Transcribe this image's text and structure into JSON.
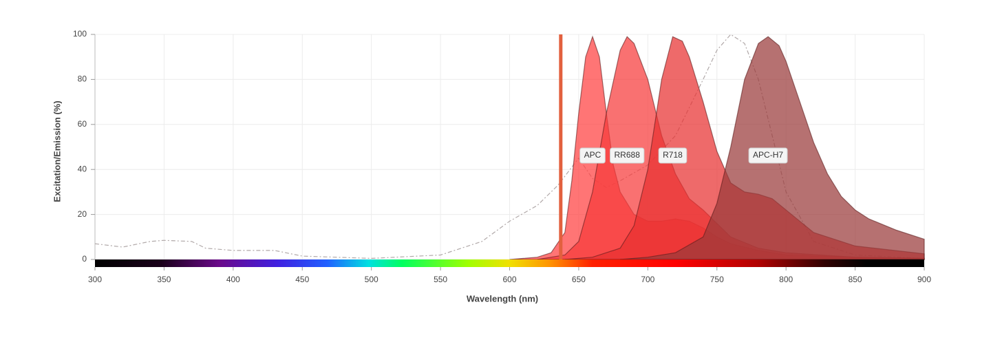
{
  "chart_data": {
    "type": "area",
    "xlabel": "Wavelength (nm)",
    "ylabel": "Excitation/Emission (%)",
    "xlim": [
      300,
      900
    ],
    "xticks": [
      300,
      350,
      400,
      450,
      500,
      550,
      600,
      650,
      700,
      750,
      800,
      850,
      900
    ],
    "ylim": [
      0,
      100
    ],
    "yticks": [
      0,
      20,
      40,
      60,
      80,
      100
    ],
    "grid": true,
    "lasers": [
      {
        "wavelength": 637,
        "color": "#e2603e"
      }
    ],
    "series": [
      {
        "color": "#b0a8a8",
        "dashed": true,
        "filled": false,
        "x": [
          300,
          320,
          340,
          350,
          370,
          380,
          400,
          430,
          450,
          500,
          550,
          580,
          600,
          620,
          635,
          650,
          660,
          670,
          680,
          700,
          720,
          740,
          750,
          760,
          770,
          780,
          790,
          800,
          820,
          850,
          900
        ],
        "values": [
          7,
          5.5,
          8,
          8.5,
          8,
          5,
          4,
          4,
          1.5,
          0.5,
          2,
          8,
          17,
          24,
          33,
          45,
          36,
          32,
          35,
          42,
          55,
          80,
          93,
          100,
          96,
          80,
          55,
          30,
          8,
          2,
          0.5
        ]
      },
      {
        "name": "APC",
        "color": "#ff4040",
        "filled": true,
        "x": [
          600,
          610,
          620,
          630,
          640,
          645,
          650,
          655,
          660,
          665,
          670,
          675,
          680,
          690,
          700,
          710,
          720,
          730,
          740,
          750,
          760,
          780,
          800,
          850,
          900
        ],
        "values": [
          0,
          0.5,
          1,
          3,
          12,
          35,
          65,
          90,
          99,
          90,
          65,
          42,
          30,
          20,
          17,
          17,
          18,
          17,
          14,
          10,
          7,
          4,
          2,
          1,
          0.5
        ]
      },
      {
        "name": "RR688",
        "color": "#f73a3a",
        "filled": true,
        "x": [
          620,
          640,
          650,
          660,
          670,
          680,
          685,
          690,
          700,
          710,
          720,
          730,
          740,
          750,
          760,
          780,
          800,
          850,
          900
        ],
        "values": [
          0,
          2,
          8,
          30,
          65,
          93,
          99,
          96,
          80,
          55,
          38,
          27,
          22,
          16,
          10,
          5,
          3,
          1,
          0.5
        ]
      },
      {
        "name": "R718",
        "color": "#e83030",
        "filled": true,
        "x": [
          640,
          660,
          680,
          690,
          700,
          710,
          718,
          725,
          730,
          740,
          750,
          760,
          770,
          780,
          790,
          800,
          820,
          850,
          900
        ],
        "values": [
          0,
          1,
          5,
          15,
          40,
          80,
          99,
          97,
          90,
          70,
          48,
          34,
          30,
          29,
          27,
          22,
          12,
          6,
          2.5
        ]
      },
      {
        "name": "APC-H7",
        "color": "#9a3a3a",
        "filled": true,
        "x": [
          680,
          700,
          720,
          740,
          750,
          760,
          770,
          780,
          787,
          795,
          800,
          810,
          820,
          830,
          840,
          850,
          860,
          880,
          900
        ],
        "values": [
          0,
          1,
          3,
          10,
          25,
          50,
          80,
          96,
          99,
          95,
          88,
          70,
          52,
          38,
          28,
          22,
          18,
          13,
          9
        ]
      }
    ]
  }
}
